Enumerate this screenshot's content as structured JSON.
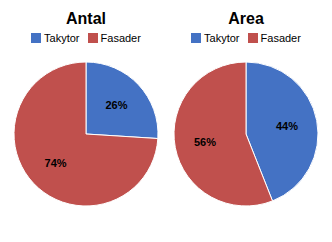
{
  "chart_data": [
    {
      "type": "pie",
      "title": "Antal",
      "categories": [
        "Takytor",
        "Fasader"
      ],
      "values": [
        26,
        74
      ],
      "value_labels": [
        "26%",
        "74%"
      ],
      "colors": [
        "#4472C4",
        "#C0504D"
      ],
      "data_labels": true,
      "legend": "top"
    },
    {
      "type": "pie",
      "title": "Area",
      "categories": [
        "Takytor",
        "Fasader"
      ],
      "values": [
        44,
        56
      ],
      "value_labels": [
        "44%",
        "56%"
      ],
      "colors": [
        "#4472C4",
        "#C0504D"
      ],
      "data_labels": true,
      "legend": "top"
    }
  ]
}
